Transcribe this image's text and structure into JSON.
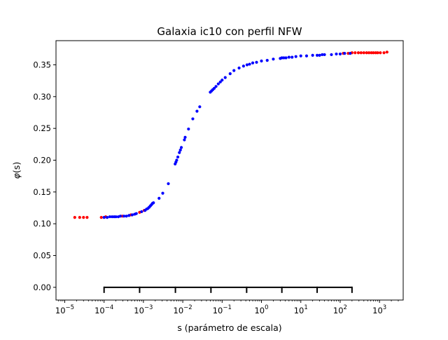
{
  "chart_data": {
    "type": "scatter",
    "title": "Galaxia ic10 con perfil NFW",
    "xlabel": "s (parámetro de escala)",
    "ylabel_prefix": "φ",
    "ylabel_arg": "(s)",
    "x_scale": "log",
    "xlim": [
      6e-06,
      4000
    ],
    "ylim": [
      -0.02,
      0.388
    ],
    "x_major_ticks": [
      {
        "value": 1e-05,
        "base": "10",
        "exp": "−5"
      },
      {
        "value": 0.0001,
        "base": "10",
        "exp": "−4"
      },
      {
        "value": 0.001,
        "base": "10",
        "exp": "−3"
      },
      {
        "value": 0.01,
        "base": "10",
        "exp": "−2"
      },
      {
        "value": 0.1,
        "base": "10",
        "exp": "−1"
      },
      {
        "value": 1,
        "base": "10",
        "exp": "0"
      },
      {
        "value": 10,
        "base": "10",
        "exp": "1"
      },
      {
        "value": 100,
        "base": "10",
        "exp": "2"
      },
      {
        "value": 1000,
        "base": "10",
        "exp": "3"
      }
    ],
    "y_ticks": [
      {
        "value": 0.0,
        "label": "0.00"
      },
      {
        "value": 0.05,
        "label": "0.05"
      },
      {
        "value": 0.1,
        "label": "0.10"
      },
      {
        "value": 0.15,
        "label": "0.15"
      },
      {
        "value": 0.2,
        "label": "0.20"
      },
      {
        "value": 0.25,
        "label": "0.25"
      },
      {
        "value": 0.3,
        "label": "0.30"
      },
      {
        "value": 0.35,
        "label": "0.35"
      }
    ],
    "grid": false,
    "legend": "none",
    "series": [
      {
        "color": "#ff0000",
        "points": [
          [
            1.8e-05,
            0.11
          ],
          [
            2.4e-05,
            0.11
          ],
          [
            3e-05,
            0.11
          ],
          [
            3.7e-05,
            0.11
          ],
          [
            8.5e-05,
            0.11
          ],
          [
            0.00011,
            0.111
          ],
          [
            0.00029,
            0.112
          ],
          [
            0.00048,
            0.114
          ],
          [
            0.0008,
            0.118
          ],
          [
            0.00105,
            0.121
          ],
          [
            120,
            0.368
          ],
          [
            160,
            0.368
          ],
          [
            200,
            0.369
          ],
          [
            240,
            0.369
          ],
          [
            290,
            0.369
          ],
          [
            340,
            0.369
          ],
          [
            400,
            0.369
          ],
          [
            470,
            0.369
          ],
          [
            540,
            0.369
          ],
          [
            620,
            0.369
          ],
          [
            700,
            0.369
          ],
          [
            800,
            0.369
          ],
          [
            900,
            0.369
          ],
          [
            1050,
            0.369
          ],
          [
            1300,
            0.369
          ],
          [
            1550,
            0.37
          ]
        ]
      },
      {
        "color": "#0000ff",
        "points": [
          [
            0.0001,
            0.11
          ],
          [
            0.00012,
            0.11
          ],
          [
            0.00014,
            0.111
          ],
          [
            0.00016,
            0.111
          ],
          [
            0.00018,
            0.111
          ],
          [
            0.0002,
            0.111
          ],
          [
            0.00023,
            0.111
          ],
          [
            0.00026,
            0.112
          ],
          [
            0.00032,
            0.112
          ],
          [
            0.00037,
            0.112
          ],
          [
            0.00043,
            0.113
          ],
          [
            0.00052,
            0.114
          ],
          [
            0.0006,
            0.115
          ],
          [
            0.00066,
            0.116
          ],
          [
            0.0009,
            0.119
          ],
          [
            0.0011,
            0.121
          ],
          [
            0.0012,
            0.123
          ],
          [
            0.0013,
            0.124
          ],
          [
            0.0014,
            0.126
          ],
          [
            0.0015,
            0.128
          ],
          [
            0.0016,
            0.13
          ],
          [
            0.0017,
            0.132
          ],
          [
            0.0018,
            0.133
          ],
          [
            0.0025,
            0.14
          ],
          [
            0.0031,
            0.148
          ],
          [
            0.0043,
            0.163
          ],
          [
            0.0064,
            0.194
          ],
          [
            0.0067,
            0.197
          ],
          [
            0.007,
            0.2
          ],
          [
            0.0075,
            0.205
          ],
          [
            0.0082,
            0.212
          ],
          [
            0.0087,
            0.216
          ],
          [
            0.0092,
            0.22
          ],
          [
            0.011,
            0.232
          ],
          [
            0.0115,
            0.236
          ],
          [
            0.014,
            0.249
          ],
          [
            0.018,
            0.265
          ],
          [
            0.023,
            0.277
          ],
          [
            0.027,
            0.284
          ],
          [
            0.05,
            0.307
          ],
          [
            0.054,
            0.309
          ],
          [
            0.058,
            0.311
          ],
          [
            0.063,
            0.313
          ],
          [
            0.07,
            0.316
          ],
          [
            0.08,
            0.32
          ],
          [
            0.09,
            0.323
          ],
          [
            0.1,
            0.326
          ],
          [
            0.12,
            0.33
          ],
          [
            0.16,
            0.336
          ],
          [
            0.2,
            0.341
          ],
          [
            0.27,
            0.345
          ],
          [
            0.35,
            0.348
          ],
          [
            0.43,
            0.35
          ],
          [
            0.5,
            0.351
          ],
          [
            0.6,
            0.353
          ],
          [
            0.75,
            0.354
          ],
          [
            1.0,
            0.356
          ],
          [
            1.4,
            0.357
          ],
          [
            2.0,
            0.359
          ],
          [
            3.0,
            0.36
          ],
          [
            3.3,
            0.361
          ],
          [
            3.7,
            0.361
          ],
          [
            4.2,
            0.361
          ],
          [
            5.0,
            0.362
          ],
          [
            6.0,
            0.362
          ],
          [
            7.5,
            0.363
          ],
          [
            10,
            0.364
          ],
          [
            14,
            0.364
          ],
          [
            20,
            0.365
          ],
          [
            26,
            0.365
          ],
          [
            30,
            0.365
          ],
          [
            35,
            0.366
          ],
          [
            40,
            0.366
          ],
          [
            60,
            0.366
          ],
          [
            80,
            0.367
          ],
          [
            100,
            0.367
          ],
          [
            130,
            0.368
          ],
          [
            180,
            0.368
          ]
        ]
      }
    ],
    "scale_bar": {
      "y": 0.0,
      "x": [
        0.0001,
        0.0008,
        0.0065,
        0.052,
        0.42,
        3.3,
        26,
        200
      ]
    }
  }
}
